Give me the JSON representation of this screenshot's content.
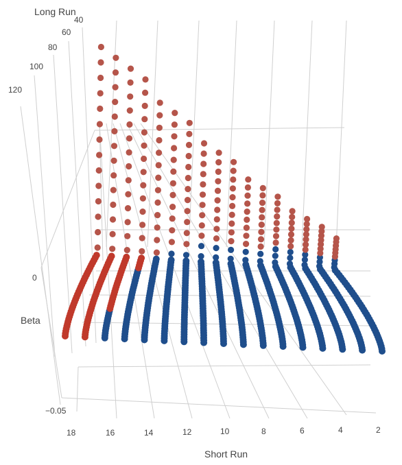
{
  "chart_data": {
    "type": "scatter3d",
    "axes": {
      "x": {
        "title": "Short Run",
        "ticks": [
          "18",
          "16",
          "14",
          "12",
          "10",
          "8",
          "6",
          "4",
          "2"
        ]
      },
      "y": {
        "title": "Long Run",
        "ticks": [
          "40",
          "60",
          "80",
          "100",
          "120"
        ]
      },
      "z": {
        "title": "Beta",
        "ticks": [
          "0",
          "−0.05"
        ]
      }
    },
    "colors": {
      "positive": "#c0392b",
      "negative": "#1f4e8c",
      "positive_fill": "#b5554a",
      "grid": "#cfcfcf"
    },
    "series": [
      {
        "short_run": 19,
        "long_run_range": [
          21,
          140
        ],
        "sign_flip_long_run": null
      },
      {
        "short_run": 18,
        "long_run_range": [
          21,
          140
        ],
        "sign_flip_long_run": null
      },
      {
        "short_run": 17,
        "long_run_range": [
          21,
          138
        ],
        "sign_flip_long_run": 33
      },
      {
        "short_run": 16,
        "long_run_range": [
          21,
          136
        ],
        "sign_flip_long_run": 50
      },
      {
        "short_run": 15,
        "long_run_range": [
          21,
          134
        ],
        "sign_flip_long_run": 55
      },
      {
        "short_run": 14,
        "long_run_range": [
          21,
          132
        ],
        "sign_flip_long_run": 60
      },
      {
        "short_run": 13,
        "long_run_range": [
          21,
          130
        ],
        "sign_flip_long_run": 63
      },
      {
        "short_run": 12,
        "long_run_range": [
          21,
          128
        ],
        "sign_flip_long_run": 65
      },
      {
        "short_run": 11,
        "long_run_range": [
          21,
          126
        ],
        "sign_flip_long_run": 66
      },
      {
        "short_run": 10,
        "long_run_range": [
          21,
          124
        ],
        "sign_flip_long_run": 67
      },
      {
        "short_run": 9,
        "long_run_range": [
          21,
          122
        ],
        "sign_flip_long_run": 68
      },
      {
        "short_run": 8,
        "long_run_range": [
          21,
          120
        ],
        "sign_flip_long_run": 69
      },
      {
        "short_run": 7,
        "long_run_range": [
          21,
          118
        ],
        "sign_flip_long_run": 70
      },
      {
        "short_run": 6,
        "long_run_range": [
          21,
          116
        ],
        "sign_flip_long_run": 71
      },
      {
        "short_run": 5,
        "long_run_range": [
          21,
          114
        ],
        "sign_flip_long_run": 72
      },
      {
        "short_run": 4,
        "long_run_range": [
          21,
          112
        ],
        "sign_flip_long_run": 73
      },
      {
        "short_run": 3,
        "long_run_range": [
          21,
          110
        ],
        "sign_flip_long_run": 74
      }
    ],
    "beta_range": [
      -0.06,
      0.12
    ],
    "grid": true,
    "legend": "none"
  }
}
